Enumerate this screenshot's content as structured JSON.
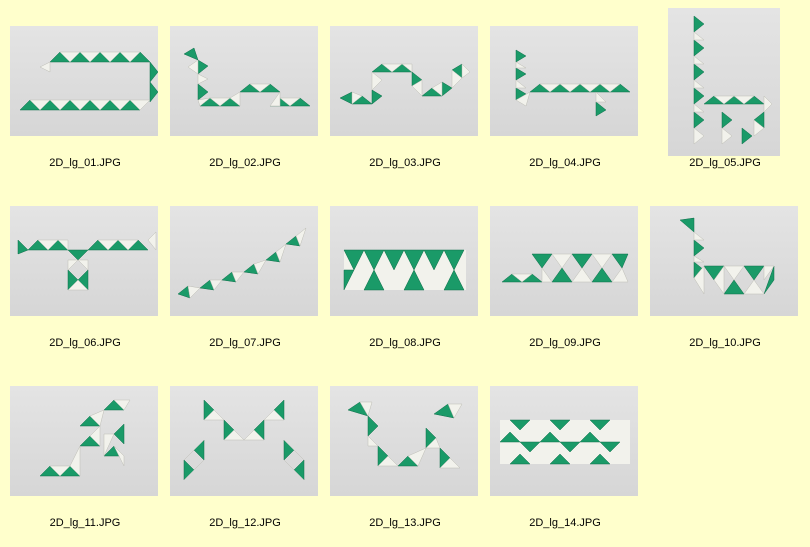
{
  "colors": {
    "background": "#ffffcc",
    "photo_bg": "#dcdcdc",
    "piece_green": "#1a9a68",
    "piece_white": "#f2f2ec"
  },
  "gallery": {
    "items": [
      {
        "filename": "2D_lg_01.JPG",
        "icon": "snake-puzzle-thumbnail"
      },
      {
        "filename": "2D_lg_02.JPG",
        "icon": "snake-puzzle-thumbnail"
      },
      {
        "filename": "2D_lg_03.JPG",
        "icon": "snake-puzzle-thumbnail"
      },
      {
        "filename": "2D_lg_04.JPG",
        "icon": "snake-puzzle-thumbnail"
      },
      {
        "filename": "2D_lg_05.JPG",
        "icon": "snake-puzzle-thumbnail"
      },
      {
        "filename": "2D_lg_06.JPG",
        "icon": "snake-puzzle-thumbnail"
      },
      {
        "filename": "2D_lg_07.JPG",
        "icon": "snake-puzzle-thumbnail"
      },
      {
        "filename": "2D_lg_08.JPG",
        "icon": "snake-puzzle-thumbnail"
      },
      {
        "filename": "2D_lg_09.JPG",
        "icon": "snake-puzzle-thumbnail"
      },
      {
        "filename": "2D_lg_10.JPG",
        "icon": "snake-puzzle-thumbnail"
      },
      {
        "filename": "2D_lg_11.JPG",
        "icon": "snake-puzzle-thumbnail"
      },
      {
        "filename": "2D_lg_12.JPG",
        "icon": "snake-puzzle-thumbnail"
      },
      {
        "filename": "2D_lg_13.JPG",
        "icon": "snake-puzzle-thumbnail"
      },
      {
        "filename": "2D_lg_14.JPG",
        "icon": "snake-puzzle-thumbnail"
      }
    ]
  }
}
